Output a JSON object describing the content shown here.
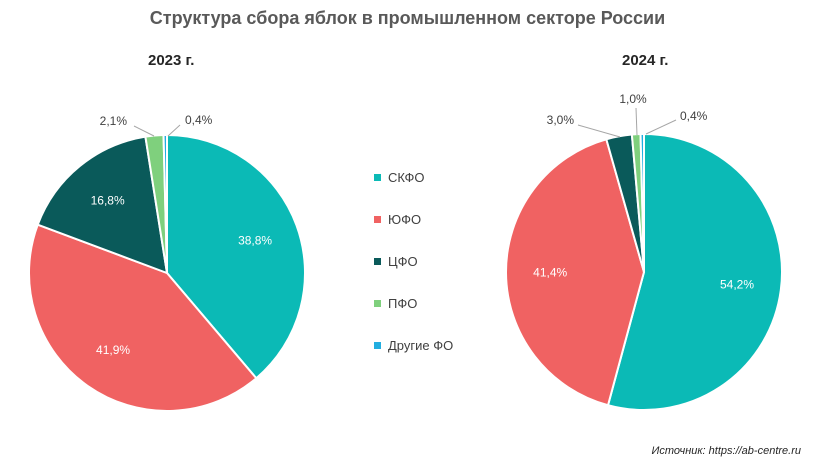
{
  "title": "Структура сбора яблок в промышленном секторе России",
  "source": "Источник: https://ab-centre.ru",
  "colors": {
    "СКФО": "#0bbab6",
    "ЮФО": "#f06262",
    "ЦФО": "#0a5a5a",
    "ПФО": "#7fd07d",
    "Другие ФО": "#22aee0"
  },
  "chart_data": [
    {
      "type": "pie",
      "title": "2023 г.",
      "categories": [
        "СКФО",
        "ЮФО",
        "ЦФО",
        "ПФО",
        "Другие ФО"
      ],
      "values": [
        38.8,
        41.9,
        16.8,
        2.1,
        0.4
      ],
      "labels": [
        "38,8%",
        "41,9%",
        "16,8%",
        "2,1%",
        "0,4%"
      ],
      "legend": "center"
    },
    {
      "type": "pie",
      "title": "2024 г.",
      "categories": [
        "СКФО",
        "ЮФО",
        "ЦФО",
        "ПФО",
        "Другие ФО"
      ],
      "values": [
        54.2,
        41.4,
        3.0,
        1.0,
        0.4
      ],
      "labels": [
        "54,2%",
        "41,4%",
        "3,0%",
        "1,0%",
        "0,4%"
      ],
      "legend": "center"
    }
  ],
  "legend": [
    "СКФО",
    "ЮФО",
    "ЦФО",
    "ПФО",
    "Другие ФО"
  ]
}
